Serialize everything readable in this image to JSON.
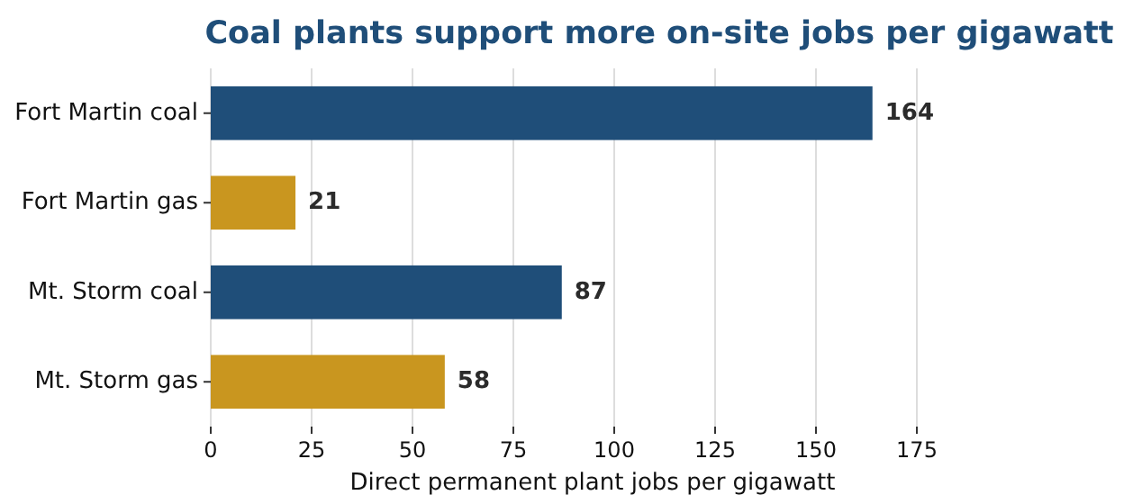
{
  "chart_data": {
    "type": "bar",
    "orientation": "horizontal",
    "title": "Coal plants support more on-site jobs per gigawatt",
    "xlabel": "Direct permanent plant jobs per gigawatt",
    "categories": [
      "Fort Martin coal",
      "Fort Martin gas",
      "Mt. Storm coal",
      "Mt. Storm gas"
    ],
    "values": [
      164,
      21,
      87,
      58
    ],
    "colors": [
      "#1f4e79",
      "#c9961f",
      "#1f4e79",
      "#c9961f"
    ],
    "xlim": [
      0,
      175
    ],
    "xticks": [
      0,
      25,
      50,
      75,
      100,
      125,
      150,
      175
    ],
    "grid": "x",
    "data_labels": true
  }
}
